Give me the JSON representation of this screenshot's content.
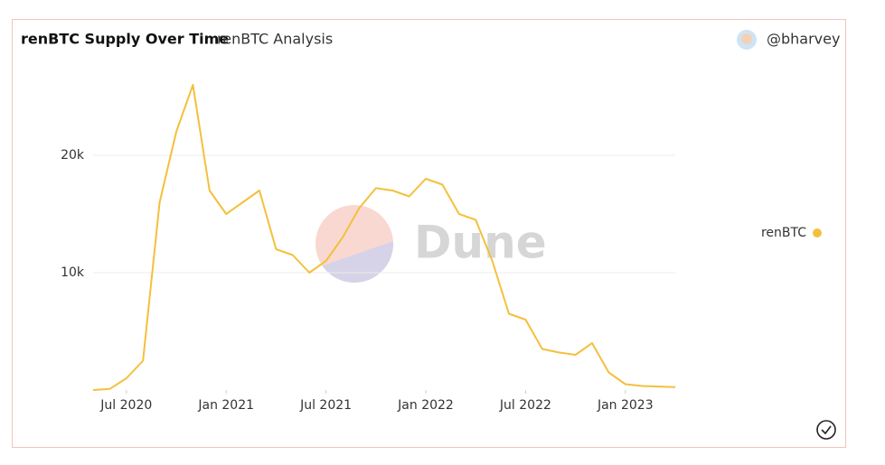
{
  "header": {
    "title": "renBTC Supply Over Time",
    "subtitle": "renBTC Analysis",
    "author": "@bharvey"
  },
  "watermark": "Dune",
  "chart_data": {
    "type": "line",
    "x": [
      "2020-05",
      "2020-06",
      "2020-07",
      "2020-08",
      "2020-09",
      "2020-10",
      "2020-11",
      "2020-12",
      "2021-01",
      "2021-02",
      "2021-03",
      "2021-04",
      "2021-05",
      "2021-06",
      "2021-07",
      "2021-08",
      "2021-09",
      "2021-10",
      "2021-11",
      "2021-12",
      "2022-01",
      "2022-02",
      "2022-03",
      "2022-04",
      "2022-05",
      "2022-06",
      "2022-07",
      "2022-08",
      "2022-09",
      "2022-10",
      "2022-11",
      "2022-12",
      "2023-01",
      "2023-02",
      "2023-03",
      "2023-04"
    ],
    "series": [
      {
        "name": "renBTC",
        "color": "#f4c03c",
        "values": [
          0,
          100,
          1000,
          2500,
          16000,
          22000,
          26000,
          17000,
          15000,
          16000,
          17000,
          12000,
          11500,
          10000,
          11000,
          13000,
          15500,
          17200,
          17000,
          16500,
          18000,
          17500,
          15000,
          14500,
          11000,
          6500,
          6000,
          3500,
          3200,
          3000,
          4000,
          1500,
          500,
          350,
          300,
          250
        ]
      }
    ],
    "xlim": [
      "2020-05",
      "2023-04"
    ],
    "xticks": [
      {
        "value": "2020-07",
        "label": "Jul 2020"
      },
      {
        "value": "2021-01",
        "label": "Jan 2021"
      },
      {
        "value": "2021-07",
        "label": "Jul 2021"
      },
      {
        "value": "2022-01",
        "label": "Jan 2022"
      },
      {
        "value": "2022-07",
        "label": "Jul 2022"
      },
      {
        "value": "2023-01",
        "label": "Jan 2023"
      }
    ],
    "ylim": [
      0,
      28000
    ],
    "yticks": [
      {
        "value": 10000,
        "label": "10k"
      },
      {
        "value": 20000,
        "label": "20k"
      }
    ],
    "grid": true
  }
}
